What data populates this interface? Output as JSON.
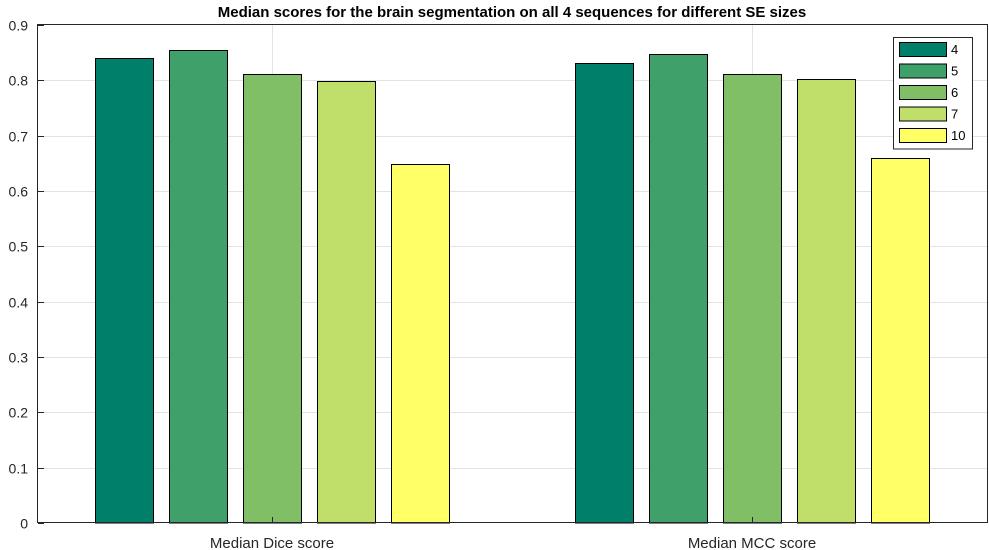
{
  "chart_data": {
    "type": "bar",
    "title": "Median scores for the brain segmentation on all 4 sequences for different SE sizes",
    "xlabel": "",
    "ylabel": "",
    "categories": [
      "Median Dice score",
      "Median MCC score"
    ],
    "series": [
      {
        "name": "4",
        "color": "#00806a",
        "values": [
          0.84,
          0.831
        ]
      },
      {
        "name": "5",
        "color": "#40a06a",
        "values": [
          0.855,
          0.848
        ]
      },
      {
        "name": "6",
        "color": "#80bf66",
        "values": [
          0.812,
          0.811
        ]
      },
      {
        "name": "7",
        "color": "#c0df6a",
        "values": [
          0.799,
          0.802
        ]
      },
      {
        "name": "10",
        "color": "#ffff66",
        "values": [
          0.648,
          0.66
        ]
      }
    ],
    "ylim": [
      0,
      0.9
    ],
    "yticks": [
      "0",
      "0.1",
      "0.2",
      "0.3",
      "0.4",
      "0.5",
      "0.6",
      "0.7",
      "0.8",
      "0.9"
    ],
    "grid": true,
    "legend_position": "top-right"
  }
}
